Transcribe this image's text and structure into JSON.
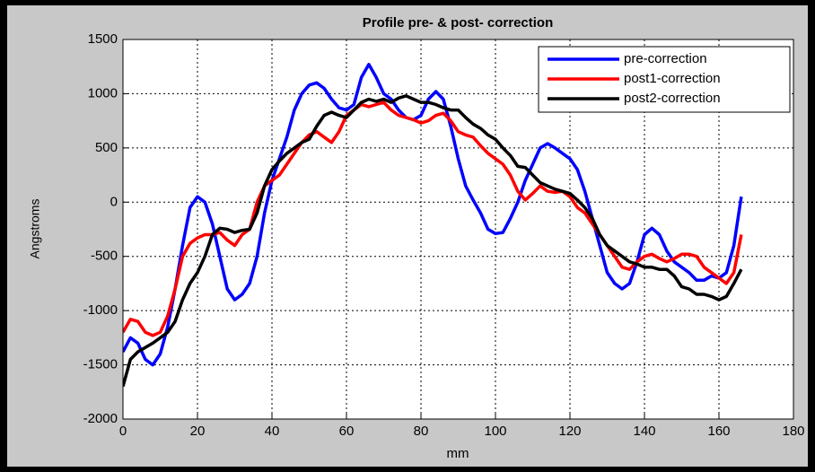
{
  "chart_data": {
    "type": "line",
    "title": "Profile pre- & post- correction",
    "xlabel": "mm",
    "ylabel": "Angstroms",
    "xlim": [
      0,
      180
    ],
    "ylim": [
      -2000,
      1500
    ],
    "xticks": [
      0,
      20,
      40,
      60,
      80,
      100,
      120,
      140,
      160,
      180
    ],
    "yticks": [
      -2000,
      -1500,
      -1000,
      -500,
      0,
      500,
      1000,
      1500
    ],
    "grid": true,
    "legend": "northeast",
    "x": [
      0,
      2,
      4,
      6,
      8,
      10,
      12,
      14,
      16,
      18,
      20,
      22,
      24,
      26,
      28,
      30,
      32,
      34,
      36,
      38,
      40,
      42,
      44,
      46,
      48,
      50,
      52,
      54,
      56,
      58,
      60,
      62,
      64,
      66,
      68,
      70,
      72,
      74,
      76,
      78,
      80,
      82,
      84,
      86,
      88,
      90,
      92,
      94,
      96,
      98,
      100,
      102,
      104,
      106,
      108,
      110,
      112,
      114,
      116,
      118,
      120,
      122,
      124,
      126,
      128,
      130,
      132,
      134,
      136,
      138,
      140,
      142,
      144,
      146,
      148,
      150,
      152,
      154,
      156,
      158,
      160,
      162,
      164,
      166
    ],
    "series": [
      {
        "name": "pre-correction",
        "color": "#0000ff",
        "values": [
          -1380,
          -1250,
          -1300,
          -1450,
          -1500,
          -1400,
          -1150,
          -800,
          -400,
          -50,
          50,
          0,
          -200,
          -500,
          -800,
          -900,
          -850,
          -750,
          -500,
          -100,
          200,
          400,
          600,
          850,
          1000,
          1080,
          1100,
          1050,
          950,
          870,
          850,
          900,
          1150,
          1270,
          1150,
          1000,
          950,
          850,
          780,
          760,
          800,
          950,
          1020,
          950,
          700,
          400,
          150,
          20,
          -100,
          -250,
          -290,
          -280,
          -150,
          0,
          200,
          350,
          500,
          540,
          500,
          450,
          400,
          300,
          100,
          -150,
          -400,
          -650,
          -750,
          -800,
          -750,
          -550,
          -300,
          -240,
          -300,
          -450,
          -550,
          -600,
          -650,
          -720,
          -720,
          -680,
          -700,
          -650,
          -400,
          50
        ]
      },
      {
        "name": "post1-correction",
        "color": "#ff0000",
        "values": [
          -1200,
          -1080,
          -1100,
          -1200,
          -1230,
          -1200,
          -1050,
          -800,
          -500,
          -380,
          -330,
          -300,
          -300,
          -280,
          -350,
          -400,
          -300,
          -250,
          0,
          150,
          200,
          250,
          350,
          450,
          550,
          620,
          650,
          600,
          550,
          650,
          800,
          850,
          900,
          880,
          900,
          920,
          850,
          800,
          780,
          760,
          730,
          750,
          800,
          820,
          750,
          650,
          620,
          600,
          520,
          450,
          400,
          350,
          250,
          100,
          20,
          80,
          150,
          100,
          90,
          100,
          50,
          -50,
          -100,
          -200,
          -300,
          -400,
          -500,
          -600,
          -620,
          -550,
          -500,
          -480,
          -520,
          -550,
          -520,
          -480,
          -480,
          -500,
          -600,
          -650,
          -700,
          -750,
          -650,
          -300
        ]
      },
      {
        "name": "post2-correction",
        "color": "#000000",
        "values": [
          -1700,
          -1450,
          -1380,
          -1340,
          -1300,
          -1250,
          -1200,
          -1100,
          -900,
          -750,
          -650,
          -500,
          -300,
          -240,
          -250,
          -280,
          -260,
          -250,
          -100,
          150,
          300,
          380,
          450,
          500,
          550,
          580,
          700,
          800,
          830,
          800,
          780,
          850,
          920,
          950,
          930,
          950,
          920,
          960,
          980,
          950,
          920,
          920,
          900,
          870,
          850,
          850,
          780,
          720,
          680,
          620,
          580,
          500,
          430,
          330,
          320,
          250,
          180,
          150,
          120,
          100,
          80,
          20,
          -50,
          -150,
          -300,
          -400,
          -450,
          -500,
          -550,
          -570,
          -600,
          -600,
          -620,
          -620,
          -680,
          -780,
          -800,
          -850,
          -850,
          -870,
          -900,
          -870,
          -750,
          -620
        ]
      }
    ]
  }
}
